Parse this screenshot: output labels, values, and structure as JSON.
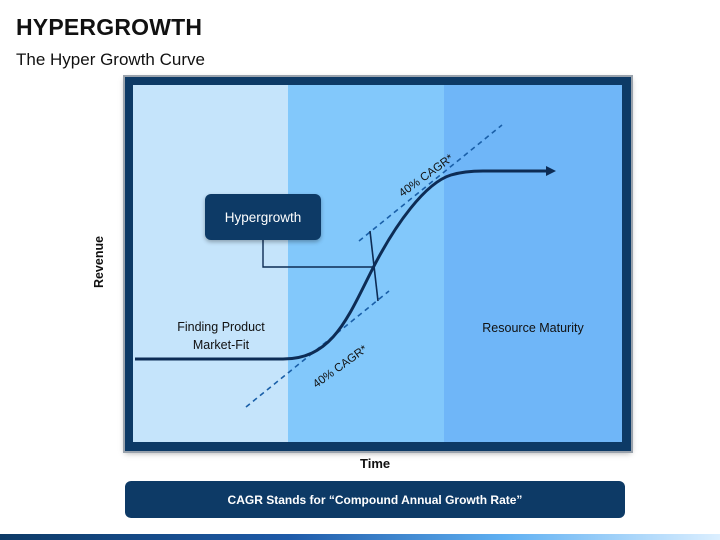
{
  "header": {
    "title": "HYPERGROWTH",
    "subtitle": "The Hyper Growth Curve"
  },
  "diagram": {
    "stage_left_label": "Finding Product Market-Fit",
    "stage_right_label": "Resource Maturity",
    "callout_label": "Hypergrowth",
    "cagr_top_label": "40% CAGR*",
    "cagr_bottom_label": "40% CAGR*",
    "y_axis_label": "Revenue",
    "x_axis_label": "Time",
    "colors": {
      "frame": "#0d3a66",
      "band_light": "#c5e4fb",
      "band_mid": "#82c8fb",
      "band_dark": "#6fb6f8",
      "curve": "#0d2c55",
      "tangent": "#1a5fa8"
    }
  },
  "footer": {
    "note": "CAGR Stands for “Compound Annual Growth Rate”"
  }
}
